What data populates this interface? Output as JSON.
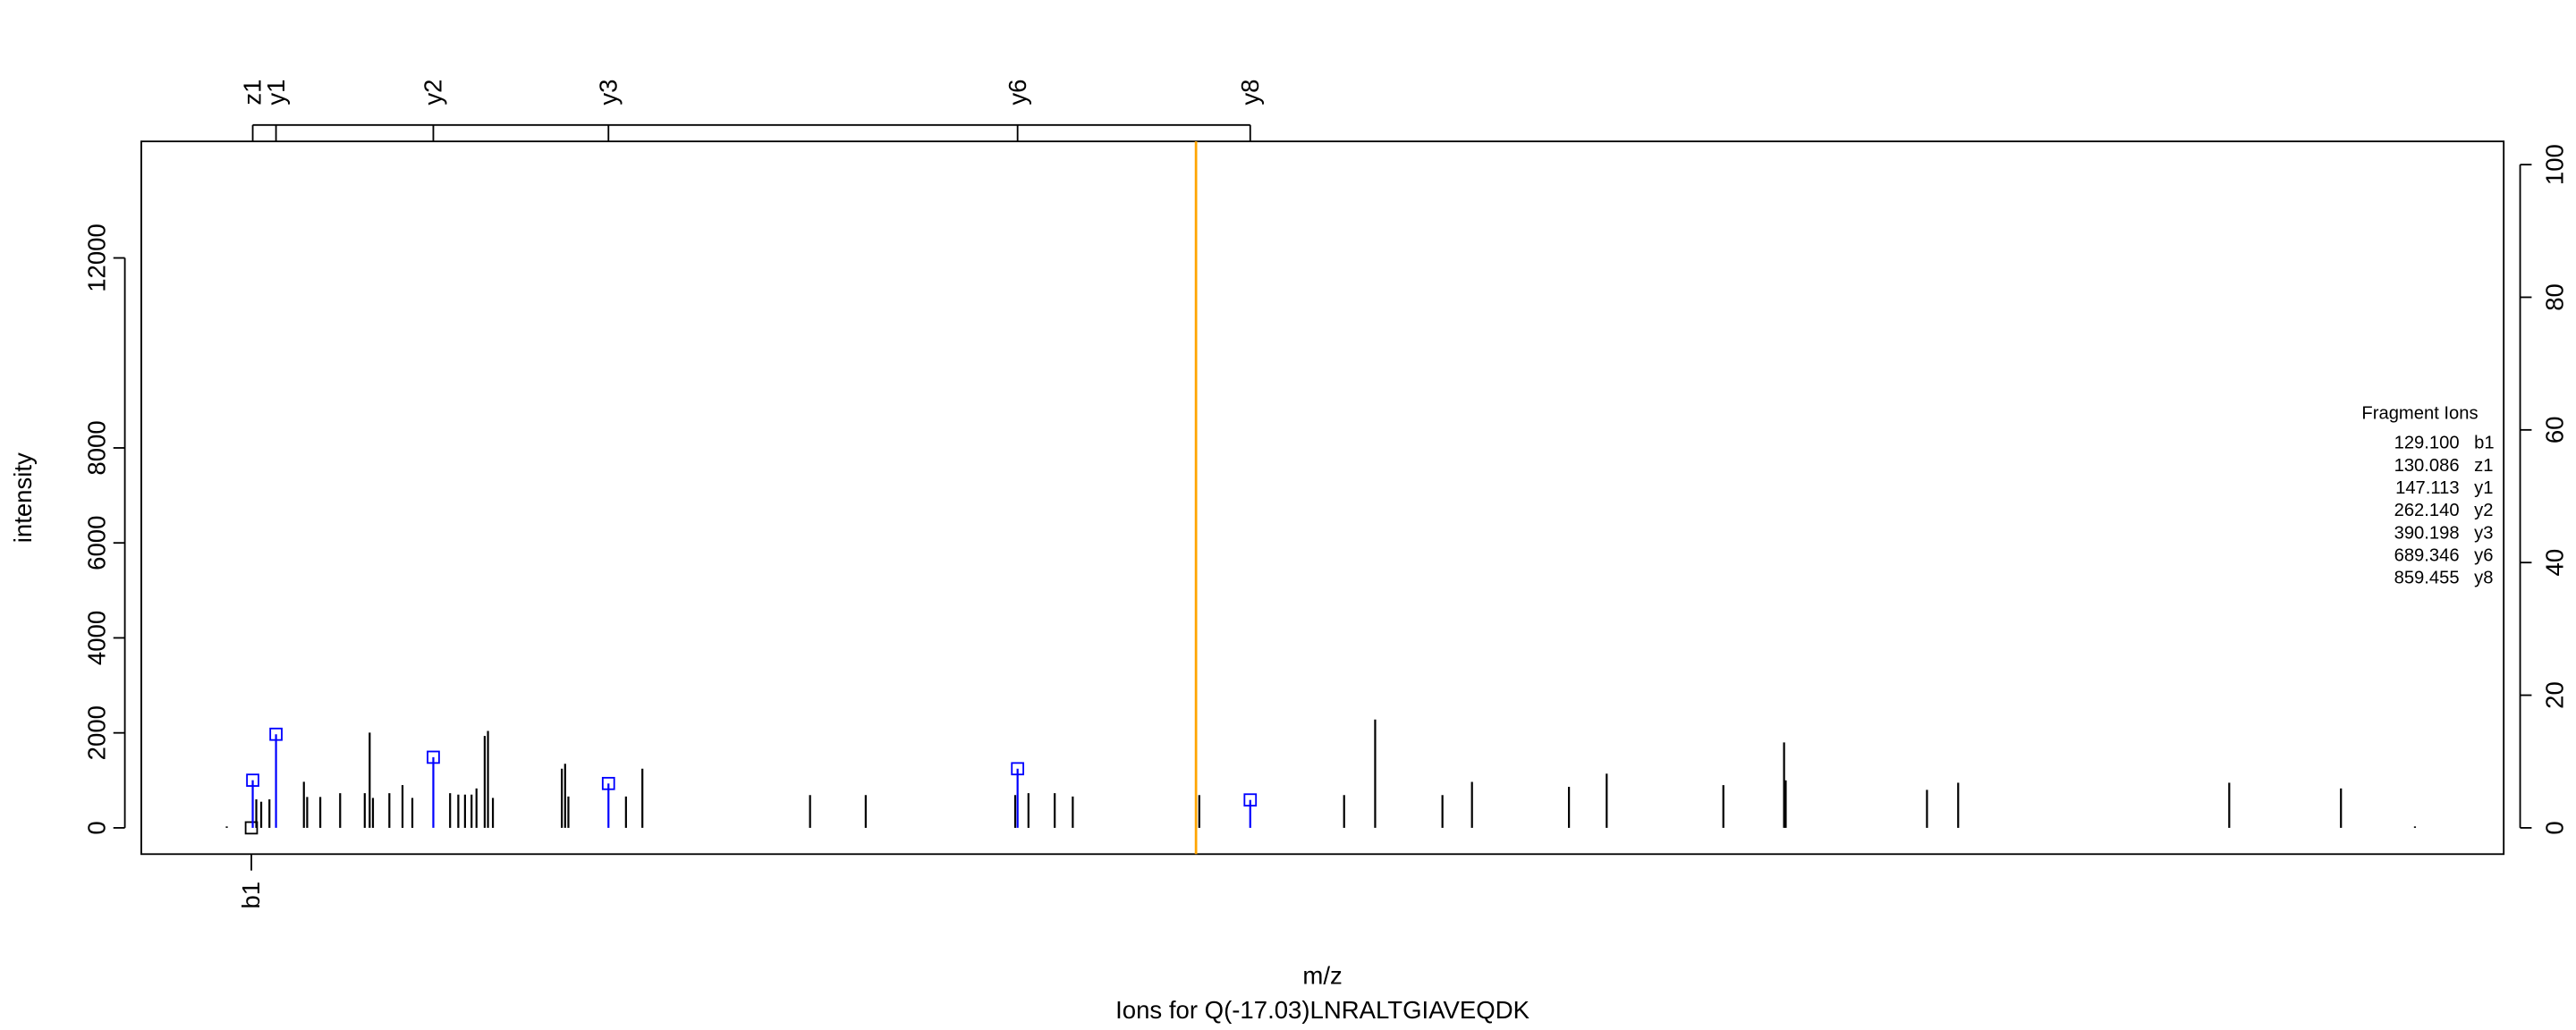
{
  "chart_data": {
    "type": "spectrum",
    "title": "Ions for Q(-17.03)LNRALTGIAVEQDK",
    "x_label": "m/z",
    "y_label": "intensity",
    "xlim": [
      48.6,
      1776
    ],
    "ylim": [
      -553,
      14454
    ],
    "yticks": [
      0,
      2000,
      4000,
      6000,
      8000,
      12000
    ],
    "y2lim": [
      -3.96,
      103.5
    ],
    "y2ticks": [
      0,
      20,
      40,
      60,
      80,
      100
    ],
    "color": "#000000",
    "precursor": 819.8,
    "precursor_color": "#ffa500",
    "x": [
      111.1,
      132.7,
      136.3,
      142.3,
      167.5,
      169.9,
      179.5,
      194.0,
      212.0,
      215.6,
      218.0,
      230.0,
      239.6,
      246.8,
      274.4,
      280.4,
      285.3,
      290.1,
      293.7,
      299.7,
      302.1,
      305.7,
      356.1,
      358.5,
      360.9,
      403.0,
      415.0,
      537.6,
      578.3,
      687.6,
      697.3,
      716.5,
      729.7,
      819.8,
      822.2,
      928.1,
      950.8,
      1000.0,
      1021.6,
      1092.5,
      1120.1,
      1205.4,
      1249.8,
      1251.0,
      1354.3,
      1377.1,
      1575.3,
      1657.0,
      1711.1
    ],
    "values": [
      30,
      600,
      550,
      600,
      970,
      650,
      650,
      730,
      730,
      2005,
      630,
      730,
      900,
      630,
      730,
      700,
      700,
      700,
      830,
      1936,
      2040,
      630,
      1245,
      1350,
      660,
      660,
      1245,
      690,
      690,
      690,
      730,
      730,
      660,
      13500,
      690,
      690,
      2282,
      690,
      968,
      864,
      1141,
      900,
      1798,
      1000,
      800,
      950,
      950,
      830,
      30
    ],
    "legend_title": "Fragment Ions",
    "ions": {
      "names": [
        "b1",
        "z1",
        "y1",
        "y2",
        "y3",
        "y6",
        "y8"
      ],
      "x": [
        129.1,
        130.086,
        147.113,
        262.14,
        390.198,
        689.346,
        859.455
      ],
      "x_labels": [
        "129.100",
        "130.086",
        "147.113",
        "262.140",
        "390.198",
        "689.346",
        "859.455"
      ],
      "values": [
        0,
        1003,
        1971,
        1487,
        934,
        1245,
        588
      ],
      "colors": [
        "#000000",
        "#0000ff",
        "#0000ff",
        "#0000ff",
        "#0000ff",
        "#0000ff",
        "#0000ff"
      ]
    }
  }
}
